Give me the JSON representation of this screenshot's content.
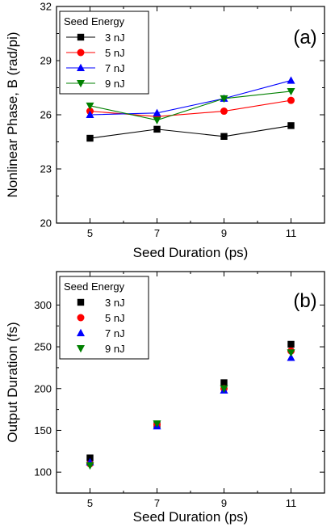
{
  "chart_data": [
    {
      "type": "line",
      "panel_label": "(a)",
      "xlabel": "Seed Duration (ps)",
      "ylabel": "Nonlinear Phase, B (rad/pi)",
      "x": [
        5,
        7,
        9,
        11
      ],
      "xlim": [
        4,
        12
      ],
      "ylim": [
        20,
        32
      ],
      "xticks": [
        5,
        7,
        9,
        11
      ],
      "yticks": [
        20,
        23,
        26,
        29,
        32
      ],
      "legend_title": "Seed Energy",
      "legend_position": "top-left",
      "series": [
        {
          "name": "3 nJ",
          "values": [
            24.7,
            25.2,
            24.8,
            25.4
          ],
          "color": "#000000",
          "marker": "square"
        },
        {
          "name": "5 nJ",
          "values": [
            26.2,
            25.9,
            26.2,
            26.8
          ],
          "color": "#ff0000",
          "marker": "circle"
        },
        {
          "name": "7 nJ",
          "values": [
            26.0,
            26.1,
            26.9,
            27.9
          ],
          "color": "#0000ff",
          "marker": "triangle-up"
        },
        {
          "name": "9 nJ",
          "values": [
            26.5,
            25.7,
            26.9,
            27.3
          ],
          "color": "#008000",
          "marker": "triangle-down"
        }
      ]
    },
    {
      "type": "scatter",
      "panel_label": "(b)",
      "xlabel": "Seed Duration (ps)",
      "ylabel": "Output Duration (fs)",
      "x": [
        5,
        7,
        9,
        11
      ],
      "xlim": [
        4,
        12
      ],
      "ylim": [
        75,
        340
      ],
      "xticks": [
        5,
        7,
        9,
        11
      ],
      "yticks": [
        100,
        150,
        200,
        250,
        300
      ],
      "legend_title": "Seed Energy",
      "legend_position": "top-left",
      "series": [
        {
          "name": "3 nJ",
          "values": [
            117,
            157,
            207,
            253
          ],
          "color": "#000000",
          "marker": "square"
        },
        {
          "name": "5 nJ",
          "values": [
            110,
            157,
            200,
            245
          ],
          "color": "#ff0000",
          "marker": "circle"
        },
        {
          "name": "7 nJ",
          "values": [
            112,
            155,
            198,
            237
          ],
          "color": "#0000ff",
          "marker": "triangle-up"
        },
        {
          "name": "9 nJ",
          "values": [
            108,
            158,
            200,
            243
          ],
          "color": "#008000",
          "marker": "triangle-down"
        }
      ]
    }
  ]
}
